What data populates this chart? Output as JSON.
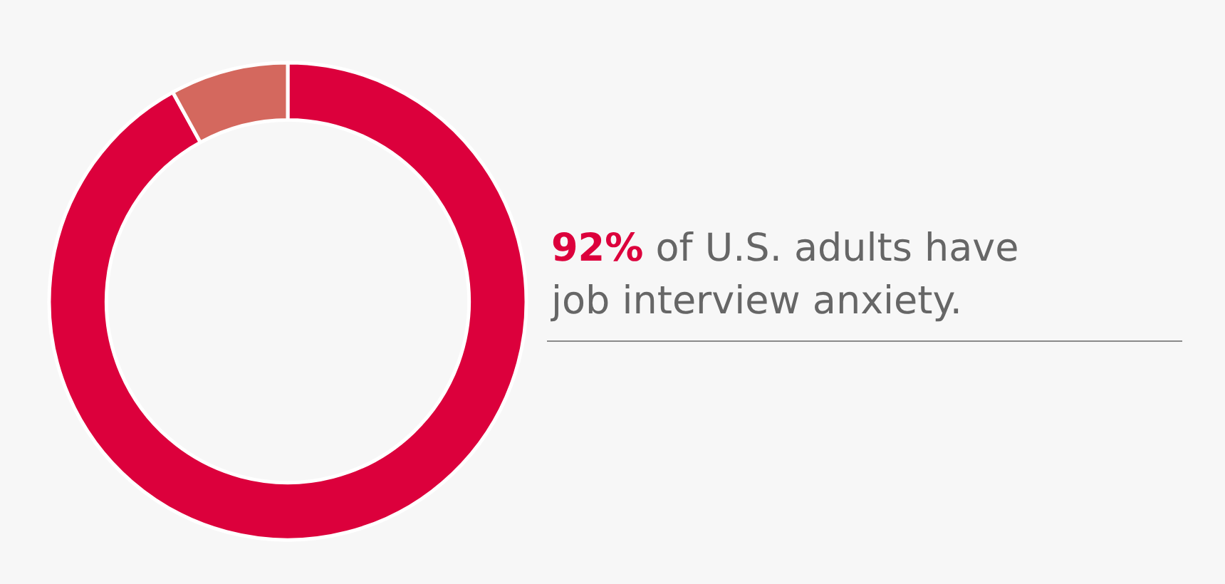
{
  "chart_data": {
    "type": "donut",
    "categories": [
      null,
      null
    ],
    "values": [
      92,
      8
    ],
    "colors": [
      "#dc003c",
      "#d4685e"
    ],
    "annotations": [
      "92% of U.S. adults have job interview anxiety."
    ]
  }
}
